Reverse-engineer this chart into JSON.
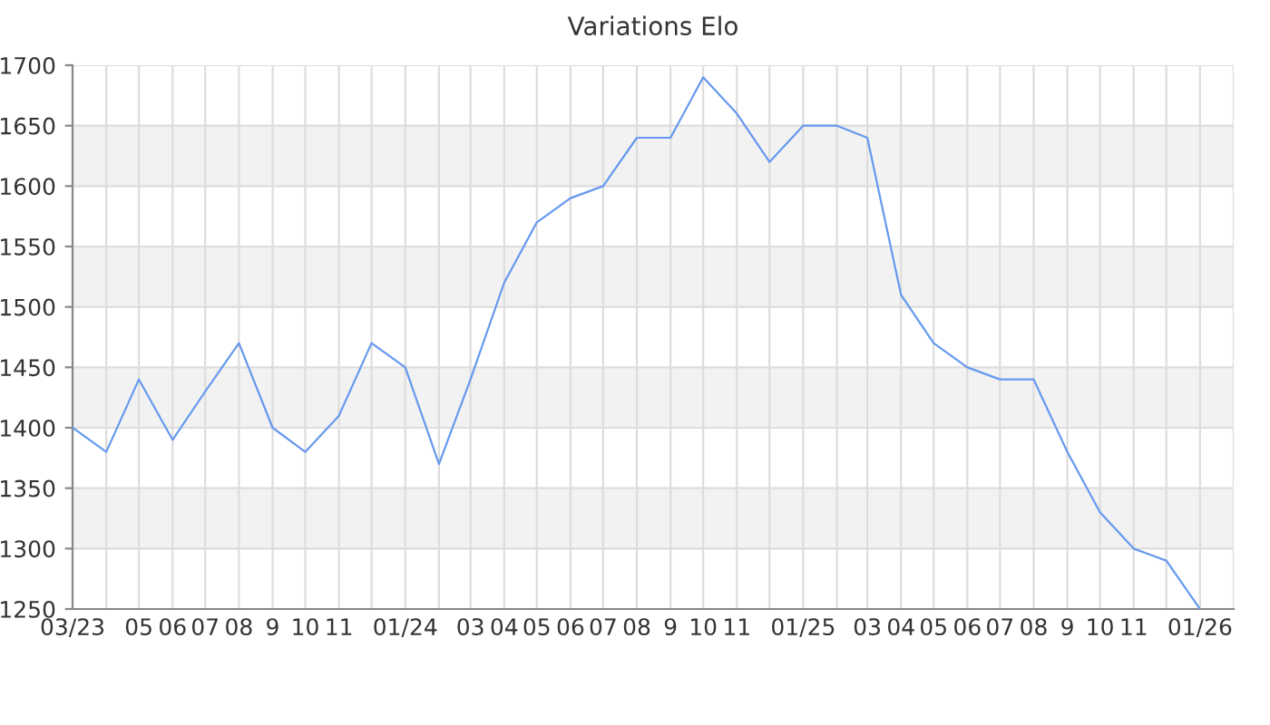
{
  "chart_data": {
    "type": "line",
    "title": "Variations Elo",
    "x": [
      "2023-03",
      "2023-04",
      "2023-05",
      "2023-06",
      "2023-07",
      "2023-08",
      "2023-09",
      "2023-10",
      "2023-11",
      "2023-12",
      "2024-01",
      "2024-02",
      "2024-03",
      "2024-04",
      "2024-05",
      "2024-06",
      "2024-07",
      "2024-08",
      "2024-09",
      "2024-10",
      "2024-11",
      "2024-12",
      "2025-01",
      "2025-02",
      "2025-03",
      "2025-04",
      "2025-05",
      "2025-06",
      "2025-07",
      "2025-08",
      "2025-09",
      "2025-10",
      "2025-11",
      "2025-12",
      "2026-01"
    ],
    "series": [
      {
        "color": "#6699ee",
        "values": [
          1400,
          1380,
          1440,
          1390,
          1430,
          1470,
          1400,
          1380,
          1410,
          1470,
          1450,
          1370,
          1440,
          1520,
          1570,
          1590,
          1600,
          1640,
          1640,
          1690,
          1660,
          1620,
          1650,
          1650,
          1640,
          1510,
          1470,
          1450,
          1440,
          1440,
          1380,
          1330,
          1300,
          1290,
          1250
        ]
      }
    ],
    "xlim": [
      "2023-03",
      "2026-02"
    ],
    "xticks": [
      {
        "value": "2023-03",
        "label": "03/23"
      },
      {
        "value": "2023-04",
        "label": null
      },
      {
        "value": "2023-05",
        "label": "05"
      },
      {
        "value": "2023-06",
        "label": "06"
      },
      {
        "value": "2023-07",
        "label": "07"
      },
      {
        "value": "2023-08",
        "label": "08"
      },
      {
        "value": "2023-09",
        "label": "9"
      },
      {
        "value": "2023-10",
        "label": "10"
      },
      {
        "value": "2023-11",
        "label": "11"
      },
      {
        "value": "2023-12",
        "label": null
      },
      {
        "value": "2024-01",
        "label": "01/24"
      },
      {
        "value": "2024-02",
        "label": null
      },
      {
        "value": "2024-03",
        "label": "03"
      },
      {
        "value": "2024-04",
        "label": "04"
      },
      {
        "value": "2024-05",
        "label": "05"
      },
      {
        "value": "2024-06",
        "label": "06"
      },
      {
        "value": "2024-07",
        "label": "07"
      },
      {
        "value": "2024-08",
        "label": "08"
      },
      {
        "value": "2024-09",
        "label": "9"
      },
      {
        "value": "2024-10",
        "label": "10"
      },
      {
        "value": "2024-11",
        "label": "11"
      },
      {
        "value": "2024-12",
        "label": null
      },
      {
        "value": "2025-01",
        "label": "01/25"
      },
      {
        "value": "2025-02",
        "label": null
      },
      {
        "value": "2025-03",
        "label": "03"
      },
      {
        "value": "2025-04",
        "label": "04"
      },
      {
        "value": "2025-05",
        "label": "05"
      },
      {
        "value": "2025-06",
        "label": "06"
      },
      {
        "value": "2025-07",
        "label": "07"
      },
      {
        "value": "2025-08",
        "label": "08"
      },
      {
        "value": "2025-09",
        "label": "9"
      },
      {
        "value": "2025-10",
        "label": "10"
      },
      {
        "value": "2025-11",
        "label": "11"
      },
      {
        "value": "2025-12",
        "label": null
      },
      {
        "value": "2026-01",
        "label": "01/26"
      },
      {
        "value": "2026-02",
        "label": null
      }
    ],
    "ylim": [
      1250,
      1700
    ],
    "yticks": [
      1250,
      1300,
      1350,
      1400,
      1450,
      1500,
      1550,
      1600,
      1650,
      1700
    ],
    "bands": [
      {
        "axis": "y",
        "from": 1300,
        "to": 1350,
        "color": "#f2f2f2"
      },
      {
        "axis": "y",
        "from": 1400,
        "to": 1450,
        "color": "#f2f2f2"
      },
      {
        "axis": "y",
        "from": 1500,
        "to": 1550,
        "color": "#f2f2f2"
      },
      {
        "axis": "y",
        "from": 1600,
        "to": 1650,
        "color": "#f2f2f2"
      }
    ],
    "grid": true,
    "legend": false,
    "marker": "none",
    "line_style": "solid"
  }
}
